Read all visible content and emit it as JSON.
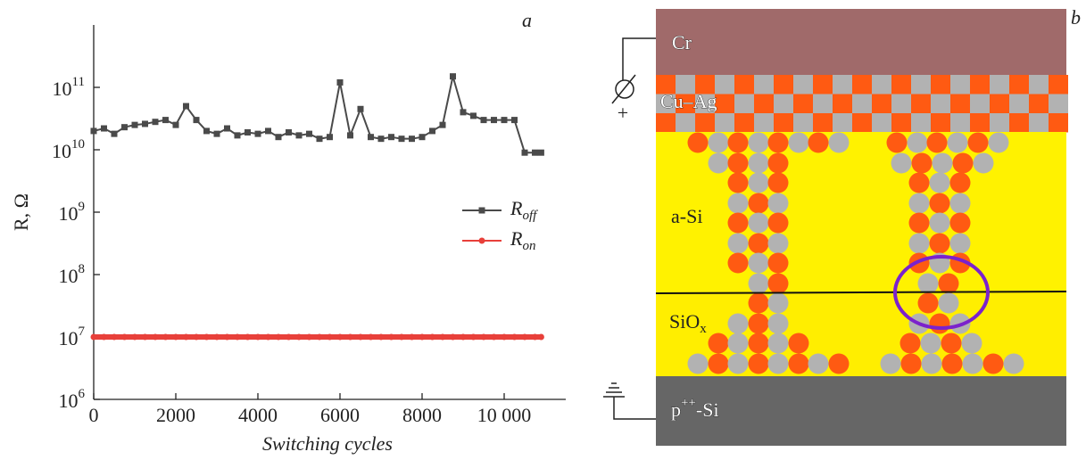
{
  "chart_data": {
    "type": "line",
    "panel_label": "a",
    "x_label": "Switching cycles",
    "y_label": "R, Ω",
    "x": [
      0,
      250,
      500,
      750,
      1000,
      1250,
      1500,
      1750,
      2000,
      2250,
      2500,
      2750,
      3000,
      3250,
      3500,
      3750,
      4000,
      4250,
      4500,
      4750,
      5000,
      5250,
      5500,
      5750,
      6000,
      6250,
      6500,
      6750,
      7000,
      7250,
      7500,
      7750,
      8000,
      8250,
      8500,
      8750,
      9000,
      9250,
      9500,
      9750,
      10000,
      10250,
      10500,
      10750,
      10900
    ],
    "series": [
      {
        "name": "R_{off}",
        "color": "#4a4a4a",
        "marker": "square",
        "values": [
          20000000000.0,
          22000000000.0,
          18000000000.0,
          23000000000.0,
          25000000000.0,
          26000000000.0,
          28000000000.0,
          30000000000.0,
          25000000000.0,
          50000000000.0,
          30000000000.0,
          20000000000.0,
          18000000000.0,
          22000000000.0,
          17000000000.0,
          19000000000.0,
          18000000000.0,
          20000000000.0,
          16000000000.0,
          19000000000.0,
          17000000000.0,
          18000000000.0,
          15000000000.0,
          16000000000.0,
          120000000000.0,
          17000000000.0,
          45000000000.0,
          16000000000.0,
          15000000000.0,
          16000000000.0,
          15000000000.0,
          15000000000.0,
          16000000000.0,
          20000000000.0,
          25000000000.0,
          150000000000.0,
          40000000000.0,
          35000000000.0,
          30000000000.0,
          30000000000.0,
          30000000000.0,
          30000000000.0,
          9000000000.0,
          9000000000.0,
          9000000000.0
        ]
      },
      {
        "name": "R_{on}",
        "color": "#e8403a",
        "marker": "circle",
        "values": [
          10000000.0,
          10000000.0,
          10000000.0,
          10000000.0,
          10000000.0,
          10000000.0,
          10000000.0,
          10000000.0,
          10000000.0,
          10000000.0,
          10000000.0,
          10000000.0,
          10000000.0,
          10000000.0,
          10000000.0,
          10000000.0,
          10000000.0,
          10000000.0,
          10000000.0,
          10000000.0,
          10000000.0,
          10000000.0,
          10000000.0,
          10000000.0,
          10000000.0,
          10000000.0,
          10000000.0,
          10000000.0,
          10000000.0,
          10000000.0,
          10000000.0,
          10000000.0,
          10000000.0,
          10000000.0,
          10000000.0,
          10000000.0,
          10000000.0,
          10000000.0,
          10000000.0,
          10000000.0,
          10000000.0,
          10000000.0,
          10000000.0,
          10000000.0,
          10000000.0
        ]
      }
    ],
    "xlim": [
      0,
      11500
    ],
    "xticks": [
      0,
      2000,
      4000,
      6000,
      8000,
      {
        "value": 10000,
        "label": "10 000"
      }
    ],
    "ylim": [
      1000000,
      1000000000000
    ],
    "log_y": true,
    "yticks": [
      {
        "value": 1000000,
        "label": "10^{6}"
      },
      {
        "value": 10000000,
        "label": "10^{7}"
      },
      {
        "value": 100000000,
        "label": "10^{8}"
      },
      {
        "value": 1000000000,
        "label": "10^{9}"
      },
      {
        "value": 10000000000,
        "label": "10^{10}"
      },
      {
        "value": 100000000000,
        "label": "10^{11}"
      }
    ],
    "legend": "right"
  },
  "diagram": {
    "panel_label": "b",
    "layers": {
      "top": "Cr",
      "checker": "Cu–Ag",
      "upper": "a-Si",
      "lower": "SiO_{x}",
      "bottom": "p^{++}-Si"
    },
    "polarity": "+"
  }
}
